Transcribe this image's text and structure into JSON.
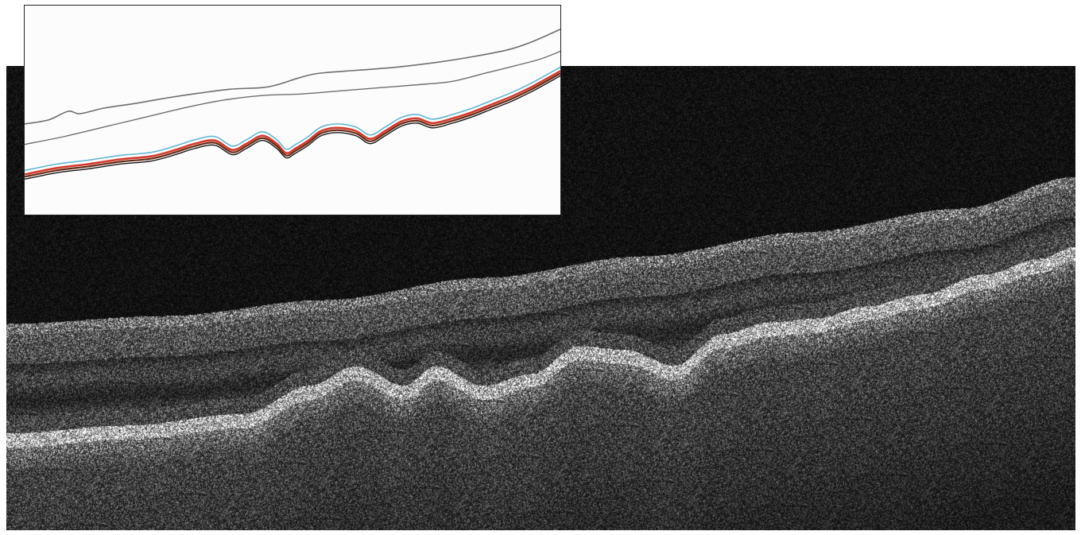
{
  "figure": {
    "type": "oct-bscan-with-segmentation-inset",
    "colors": {
      "scan_background": "#0d0d0d",
      "inset_background": "#fcfcfd",
      "inset_border": "#222222",
      "layer_upper_gray": "#6e6e6e",
      "layer_lower_gray": "#6e6e6e",
      "layer_cyan": "#5fb7d0",
      "layer_red": "#d33a2c",
      "layer_brown": "#6a2a14",
      "layer_black": "#1a1a1a"
    },
    "segmentation_lines": [
      {
        "name": "",
        "color_key": "layer_upper_gray"
      },
      {
        "name": "",
        "color_key": "layer_lower_gray"
      },
      {
        "name": "",
        "color_key": "layer_cyan"
      },
      {
        "name": "",
        "color_key": "layer_red"
      },
      {
        "name": "",
        "color_key": "layer_brown"
      },
      {
        "name": "",
        "color_key": "layer_black"
      }
    ]
  }
}
